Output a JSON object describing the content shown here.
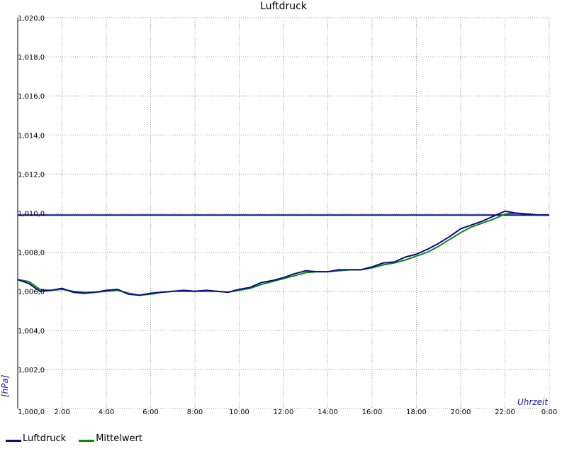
{
  "chart_data": {
    "type": "line",
    "title": "Luftdruck",
    "xlabel": "Uhrzeit",
    "ylabel": "[hPa]",
    "xlim": [
      0,
      24
    ],
    "ylim": [
      1000,
      1020
    ],
    "x_ticks": [
      0,
      2,
      4,
      6,
      8,
      10,
      12,
      14,
      16,
      18,
      20,
      22,
      24
    ],
    "x_tick_labels": [
      "",
      "2:00",
      "4:00",
      "6:00",
      "8:00",
      "10:00",
      "12:00",
      "14:00",
      "16:00",
      "18:00",
      "20:00",
      "22:00",
      "0:00"
    ],
    "y_ticks": [
      1000,
      1002,
      1004,
      1006,
      1008,
      1010,
      1012,
      1014,
      1016,
      1018,
      1020
    ],
    "y_tick_labels": [
      "1,000,0",
      "1,002,0",
      "1,004,0",
      "1,006,0",
      "1,008,0",
      "1,010,0",
      "1,012,0",
      "1,014,0",
      "1,016,0",
      "1,018,0",
      "1,020,0"
    ],
    "grid": true,
    "legend_position": "bottom-left",
    "reference_line": {
      "value": 1009.9,
      "color": "#0a0a8a"
    },
    "series": [
      {
        "name": "Luftdruck",
        "color": "#0a0a8a",
        "x": [
          0,
          0.5,
          1,
          1.5,
          2,
          2.5,
          3,
          3.5,
          4,
          4.5,
          5,
          5.5,
          6,
          6.5,
          7,
          7.5,
          8,
          8.5,
          9,
          9.5,
          10,
          10.5,
          11,
          11.5,
          12,
          12.5,
          13,
          13.5,
          14,
          14.5,
          15,
          15.5,
          16,
          16.5,
          17,
          17.5,
          18,
          18.5,
          19,
          19.5,
          20,
          20.5,
          21,
          21.5,
          22,
          22.5,
          23,
          23.5,
          24
        ],
        "y": [
          1006.6,
          1006.4,
          1006.0,
          1006.05,
          1006.15,
          1005.95,
          1005.9,
          1005.95,
          1006.05,
          1006.1,
          1005.85,
          1005.8,
          1005.9,
          1005.95,
          1006.0,
          1006.05,
          1006.0,
          1006.05,
          1006.0,
          1005.95,
          1006.1,
          1006.2,
          1006.45,
          1006.55,
          1006.7,
          1006.9,
          1007.05,
          1007.0,
          1007.0,
          1007.1,
          1007.1,
          1007.1,
          1007.25,
          1007.45,
          1007.5,
          1007.75,
          1007.9,
          1008.15,
          1008.45,
          1008.8,
          1009.2,
          1009.4,
          1009.6,
          1009.85,
          1010.1,
          1010.0,
          1009.95,
          1009.9,
          1009.9
        ]
      },
      {
        "name": "Mittelwert",
        "color": "#0a8a0a",
        "x": [
          0,
          0.5,
          1,
          1.5,
          2,
          2.5,
          3,
          3.5,
          4,
          4.5,
          5,
          5.5,
          6,
          6.5,
          7,
          7.5,
          8,
          8.5,
          9,
          9.5,
          10,
          10.5,
          11,
          11.5,
          12,
          12.5,
          13,
          13.5,
          14,
          14.5,
          15,
          15.5,
          16,
          16.5,
          17,
          17.5,
          18,
          18.5,
          19,
          19.5,
          20,
          20.5,
          21,
          21.5,
          22,
          22.5,
          23,
          23.5,
          24
        ],
        "y": [
          1006.6,
          1006.5,
          1006.1,
          1006.05,
          1006.1,
          1006.0,
          1005.95,
          1005.95,
          1006.0,
          1006.05,
          1005.9,
          1005.8,
          1005.85,
          1005.95,
          1006.0,
          1006.0,
          1006.0,
          1006.0,
          1006.0,
          1005.95,
          1006.05,
          1006.15,
          1006.35,
          1006.5,
          1006.65,
          1006.8,
          1006.95,
          1007.0,
          1007.0,
          1007.05,
          1007.1,
          1007.1,
          1007.2,
          1007.35,
          1007.45,
          1007.6,
          1007.8,
          1008.0,
          1008.3,
          1008.65,
          1009.0,
          1009.3,
          1009.5,
          1009.7,
          1009.95,
          1010.0,
          1009.95,
          1009.9,
          1009.9
        ]
      }
    ]
  }
}
